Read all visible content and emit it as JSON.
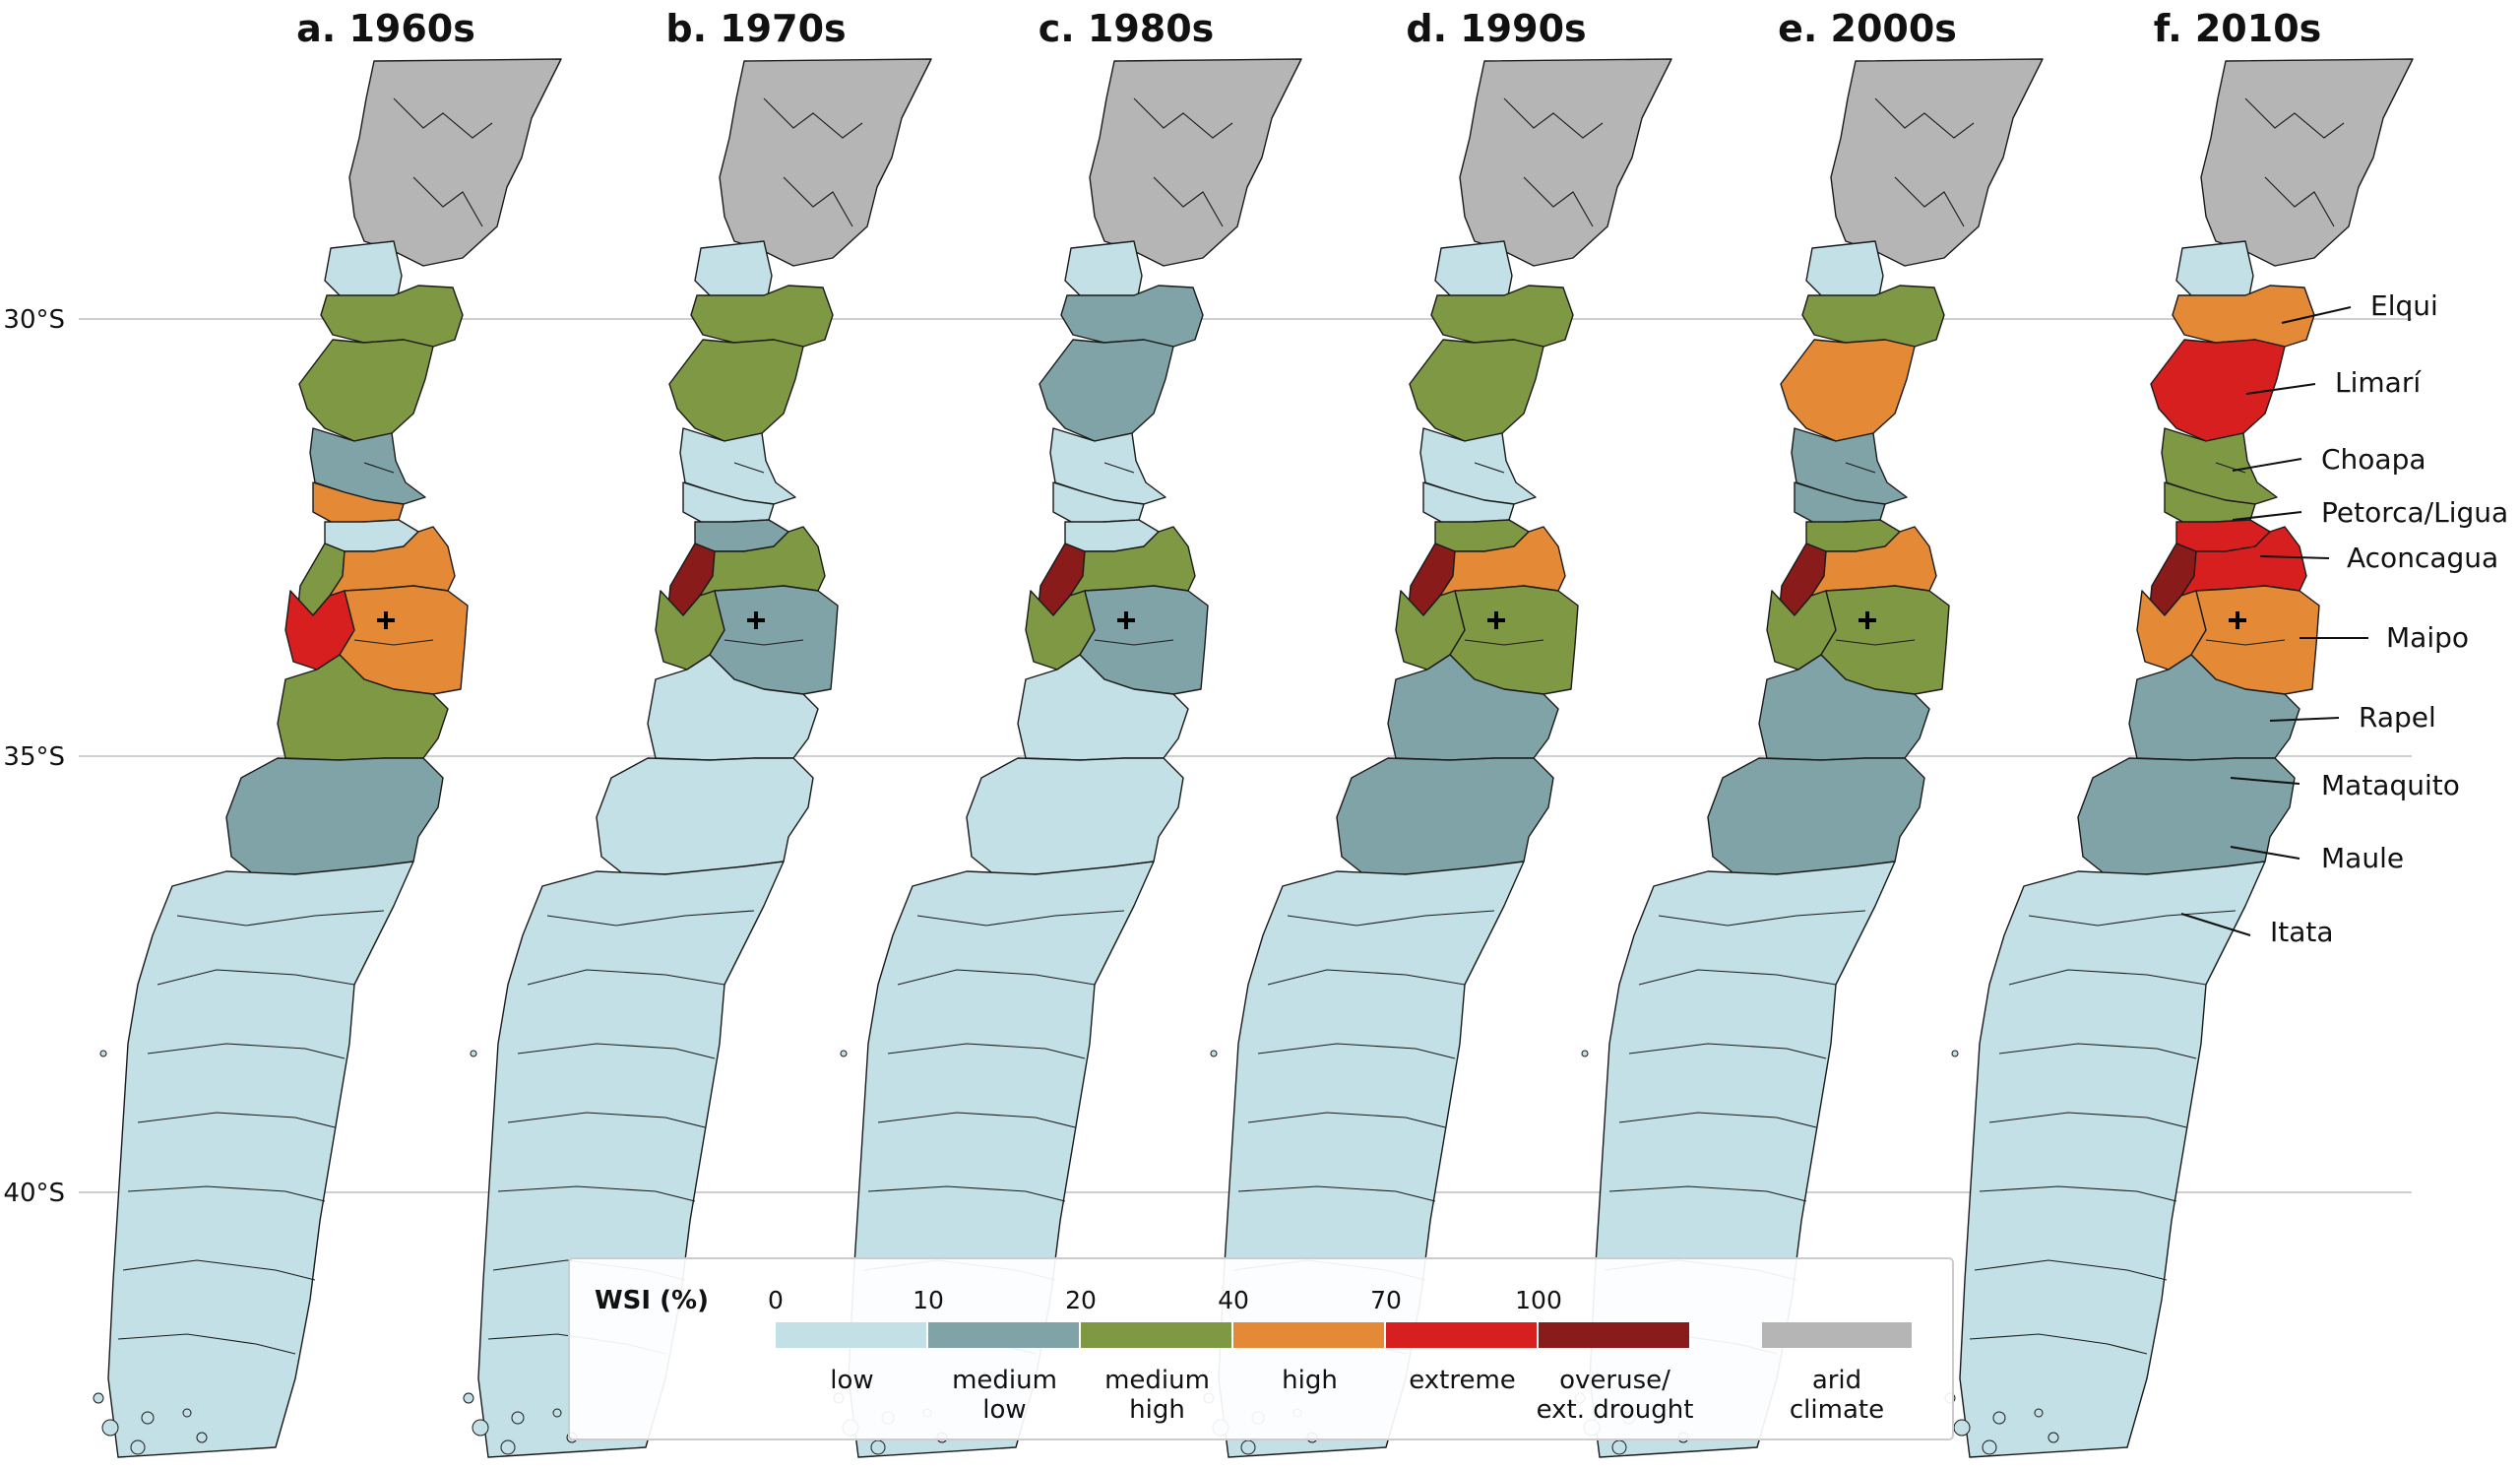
{
  "colors": {
    "low": "#c2e0e6",
    "medium_low": "#7fa3a7",
    "medium_high": "#7f9843",
    "high": "#e48935",
    "extreme": "#d71f1f",
    "overuse": "#891b1b",
    "arid": "#b5b5b5"
  },
  "latitude_labels": [
    "30°S",
    "35°S",
    "40°S"
  ],
  "panels": [
    {
      "title": "a. 1960s",
      "classes": [
        "arid",
        "low",
        "medium_high",
        "medium_high",
        "medium_low",
        "high",
        "low",
        "medium_high",
        "high",
        "extreme",
        "high",
        "medium_high",
        "medium_low",
        "low"
      ]
    },
    {
      "title": "b. 1970s",
      "classes": [
        "arid",
        "low",
        "medium_high",
        "medium_high",
        "low",
        "low",
        "medium_low",
        "overuse",
        "medium_high",
        "medium_high",
        "medium_low",
        "low",
        "low",
        "low"
      ]
    },
    {
      "title": "c. 1980s",
      "classes": [
        "arid",
        "low",
        "medium_low",
        "medium_low",
        "low",
        "low",
        "low",
        "overuse",
        "medium_high",
        "medium_high",
        "medium_low",
        "low",
        "low",
        "low"
      ]
    },
    {
      "title": "d. 1990s",
      "classes": [
        "arid",
        "low",
        "medium_high",
        "medium_high",
        "low",
        "low",
        "medium_high",
        "overuse",
        "high",
        "medium_high",
        "medium_high",
        "medium_low",
        "medium_low",
        "low"
      ]
    },
    {
      "title": "e. 2000s",
      "classes": [
        "arid",
        "low",
        "medium_high",
        "high",
        "medium_low",
        "medium_low",
        "medium_high",
        "overuse",
        "high",
        "medium_high",
        "medium_high",
        "medium_low",
        "medium_low",
        "low"
      ]
    },
    {
      "title": "f. 2010s",
      "classes": [
        "arid",
        "low",
        "high",
        "extreme",
        "medium_high",
        "medium_high",
        "extreme",
        "overuse",
        "extreme",
        "high",
        "high",
        "medium_low",
        "medium_low",
        "low"
      ]
    }
  ],
  "basin_labels": [
    "Elqui",
    "Limarí",
    "Choapa",
    "Petorca/Ligua",
    "Aconcagua",
    "Maipo",
    "Rapel",
    "Mataquito",
    "Maule",
    "Itata"
  ],
  "legend": {
    "title": "WSI (%)",
    "ticks": [
      "0",
      "10",
      "20",
      "40",
      "70",
      "100"
    ],
    "categories": [
      {
        "key": "low",
        "line1": "low",
        "line2": ""
      },
      {
        "key": "medium_low",
        "line1": "medium",
        "line2": "low"
      },
      {
        "key": "medium_high",
        "line1": "medium",
        "line2": "high"
      },
      {
        "key": "high",
        "line1": "high",
        "line2": ""
      },
      {
        "key": "extreme",
        "line1": "extreme",
        "line2": ""
      },
      {
        "key": "overuse",
        "line1": "overuse/",
        "line2": "ext. drought"
      }
    ],
    "arid": {
      "key": "arid",
      "line1": "arid",
      "line2": "climate"
    }
  }
}
